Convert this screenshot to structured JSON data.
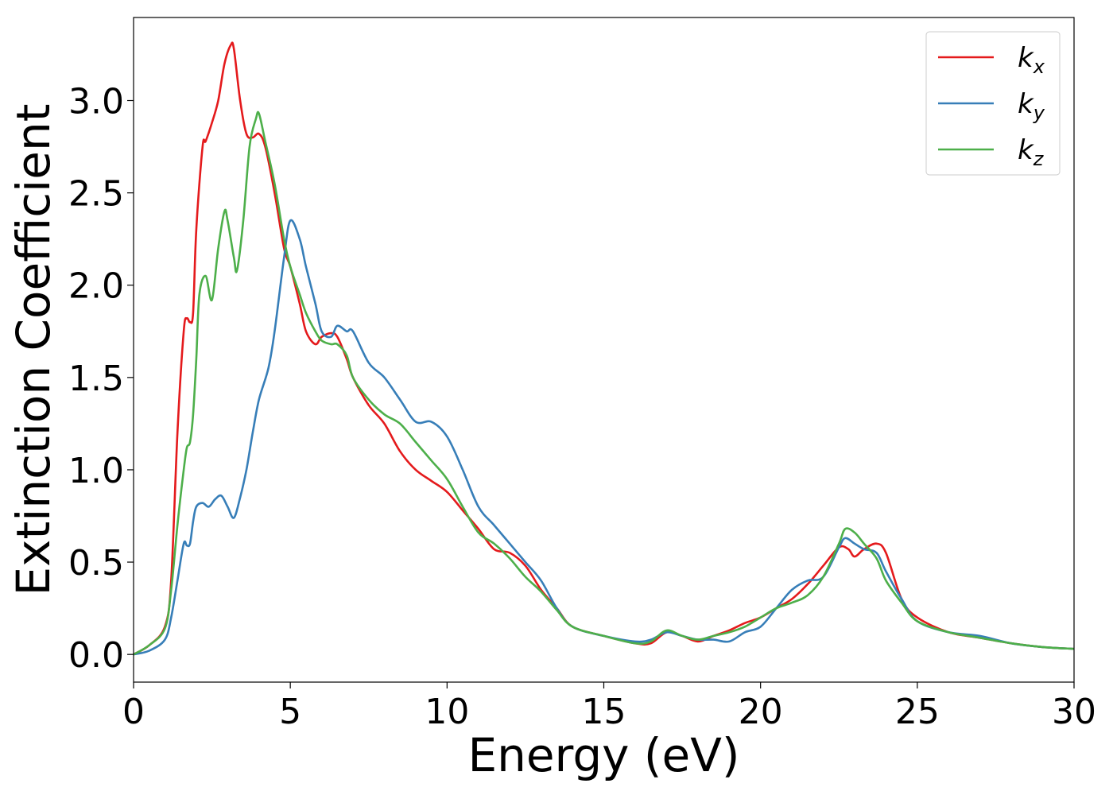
{
  "chart_data": {
    "type": "line",
    "title": "",
    "xlabel": "Energy (eV)",
    "ylabel": "Extinction Coefficient",
    "xlim": [
      0,
      30
    ],
    "ylim": [
      -0.15,
      3.45
    ],
    "xticks": [
      0,
      5,
      10,
      15,
      20,
      25,
      30
    ],
    "xtick_labels": [
      "0",
      "5",
      "10",
      "15",
      "20",
      "25",
      "30"
    ],
    "yticks": [
      0.0,
      0.5,
      1.0,
      1.5,
      2.0,
      2.5,
      3.0
    ],
    "ytick_labels": [
      "0.0",
      "0.5",
      "1.0",
      "1.5",
      "2.0",
      "2.5",
      "3.0"
    ],
    "grid": false,
    "legend_position": "top-right",
    "series": [
      {
        "name": "k",
        "name_sub": "x",
        "color": "#e41a1c",
        "x": [
          0,
          0.5,
          1.0,
          1.2,
          1.4,
          1.6,
          1.7,
          1.8,
          1.9,
          2.0,
          2.2,
          2.3,
          2.5,
          2.7,
          2.9,
          3.1,
          3.2,
          3.4,
          3.6,
          3.8,
          4.0,
          4.2,
          4.5,
          4.8,
          5.0,
          5.3,
          5.5,
          5.8,
          6.0,
          6.3,
          6.5,
          6.8,
          7.0,
          7.5,
          8.0,
          8.5,
          9.0,
          9.5,
          10.0,
          10.5,
          11.0,
          11.5,
          12.0,
          12.5,
          13.0,
          13.5,
          14.0,
          15.0,
          16.0,
          16.5,
          17.0,
          17.5,
          18.0,
          18.5,
          19.0,
          19.5,
          20.0,
          20.5,
          21.0,
          21.5,
          22.0,
          22.5,
          22.8,
          23.0,
          23.3,
          23.7,
          24.0,
          24.5,
          25.0,
          26.0,
          27.0,
          28.0,
          29.0,
          30.0
        ],
        "y": [
          0.0,
          0.05,
          0.15,
          0.4,
          1.2,
          1.75,
          1.82,
          1.8,
          1.85,
          2.3,
          2.75,
          2.78,
          2.88,
          3.0,
          3.2,
          3.3,
          3.28,
          3.0,
          2.82,
          2.8,
          2.82,
          2.75,
          2.5,
          2.2,
          2.1,
          1.9,
          1.75,
          1.68,
          1.72,
          1.74,
          1.72,
          1.6,
          1.5,
          1.35,
          1.25,
          1.1,
          1.0,
          0.94,
          0.88,
          0.78,
          0.68,
          0.57,
          0.55,
          0.48,
          0.35,
          0.25,
          0.15,
          0.1,
          0.06,
          0.06,
          0.12,
          0.1,
          0.07,
          0.1,
          0.13,
          0.17,
          0.2,
          0.25,
          0.3,
          0.38,
          0.48,
          0.58,
          0.57,
          0.53,
          0.57,
          0.6,
          0.55,
          0.3,
          0.2,
          0.12,
          0.09,
          0.06,
          0.04,
          0.03
        ]
      },
      {
        "name": "k",
        "name_sub": "y",
        "color": "#377eb8",
        "x": [
          0,
          0.5,
          1.0,
          1.2,
          1.4,
          1.6,
          1.7,
          1.8,
          1.9,
          2.0,
          2.2,
          2.4,
          2.6,
          2.8,
          3.0,
          3.2,
          3.4,
          3.6,
          3.8,
          4.0,
          4.3,
          4.5,
          4.8,
          5.0,
          5.3,
          5.5,
          5.8,
          6.0,
          6.3,
          6.5,
          6.8,
          7.0,
          7.5,
          8.0,
          8.5,
          9.0,
          9.5,
          10.0,
          10.5,
          11.0,
          11.5,
          12.0,
          12.5,
          13.0,
          13.5,
          14.0,
          15.0,
          16.0,
          16.5,
          17.0,
          17.5,
          18.0,
          18.5,
          19.0,
          19.5,
          20.0,
          20.5,
          21.0,
          21.5,
          22.0,
          22.5,
          22.7,
          23.0,
          23.3,
          23.7,
          24.0,
          24.5,
          25.0,
          26.0,
          27.0,
          28.0,
          29.0,
          30.0
        ],
        "y": [
          0.0,
          0.02,
          0.08,
          0.2,
          0.4,
          0.6,
          0.59,
          0.6,
          0.72,
          0.8,
          0.82,
          0.8,
          0.84,
          0.86,
          0.8,
          0.74,
          0.85,
          1.0,
          1.2,
          1.38,
          1.55,
          1.75,
          2.15,
          2.35,
          2.25,
          2.1,
          1.9,
          1.75,
          1.72,
          1.78,
          1.75,
          1.75,
          1.58,
          1.5,
          1.38,
          1.26,
          1.26,
          1.18,
          1.0,
          0.8,
          0.7,
          0.6,
          0.5,
          0.4,
          0.25,
          0.15,
          0.1,
          0.07,
          0.08,
          0.12,
          0.1,
          0.08,
          0.08,
          0.07,
          0.12,
          0.15,
          0.25,
          0.35,
          0.4,
          0.42,
          0.58,
          0.63,
          0.6,
          0.57,
          0.55,
          0.45,
          0.3,
          0.18,
          0.12,
          0.1,
          0.06,
          0.04,
          0.03
        ]
      },
      {
        "name": "k",
        "name_sub": "z",
        "color": "#4daf4a",
        "x": [
          0,
          0.5,
          1.0,
          1.2,
          1.4,
          1.6,
          1.7,
          1.8,
          1.9,
          2.0,
          2.1,
          2.3,
          2.5,
          2.7,
          2.9,
          3.0,
          3.2,
          3.3,
          3.5,
          3.7,
          3.9,
          4.0,
          4.2,
          4.5,
          4.8,
          5.0,
          5.3,
          5.5,
          5.8,
          6.0,
          6.3,
          6.5,
          6.8,
          7.0,
          7.5,
          8.0,
          8.5,
          9.0,
          9.5,
          10.0,
          10.5,
          11.0,
          11.5,
          12.0,
          12.5,
          13.0,
          13.5,
          14.0,
          15.0,
          16.0,
          16.5,
          17.0,
          17.5,
          18.0,
          18.5,
          19.0,
          19.5,
          20.0,
          20.5,
          21.0,
          21.5,
          22.0,
          22.5,
          22.7,
          23.0,
          23.3,
          23.7,
          24.0,
          24.5,
          25.0,
          26.0,
          27.0,
          28.0,
          29.0,
          30.0
        ],
        "y": [
          0.0,
          0.05,
          0.14,
          0.35,
          0.7,
          1.0,
          1.12,
          1.15,
          1.3,
          1.6,
          1.95,
          2.05,
          1.92,
          2.2,
          2.4,
          2.35,
          2.15,
          2.08,
          2.35,
          2.75,
          2.9,
          2.93,
          2.78,
          2.55,
          2.25,
          2.1,
          1.95,
          1.85,
          1.75,
          1.7,
          1.68,
          1.68,
          1.62,
          1.5,
          1.38,
          1.3,
          1.25,
          1.15,
          1.05,
          0.95,
          0.8,
          0.66,
          0.6,
          0.52,
          0.42,
          0.34,
          0.24,
          0.15,
          0.1,
          0.06,
          0.07,
          0.13,
          0.1,
          0.08,
          0.1,
          0.12,
          0.15,
          0.2,
          0.25,
          0.28,
          0.32,
          0.42,
          0.6,
          0.68,
          0.66,
          0.6,
          0.52,
          0.4,
          0.28,
          0.18,
          0.12,
          0.09,
          0.06,
          0.04,
          0.03
        ]
      }
    ]
  }
}
